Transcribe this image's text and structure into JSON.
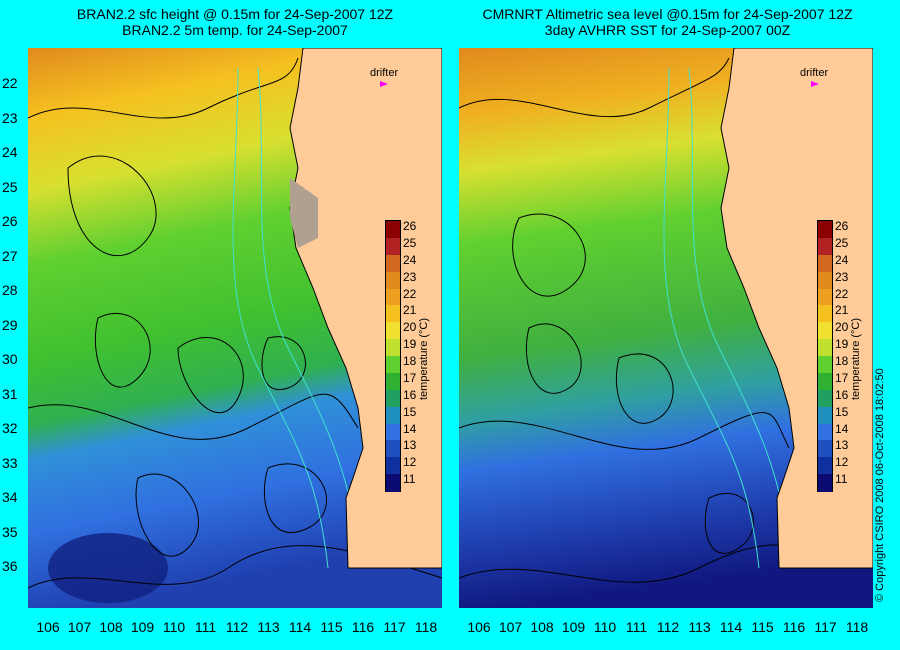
{
  "panels": [
    {
      "title_line1": "BRAN2.2 sfc height @ 0.15m for 24-Sep-2007 12Z",
      "title_line2": "BRAN2.2 5m temp. for 24-Sep-2007",
      "drifter_label": "drifter",
      "colorbar_title": "temperature (°C)"
    },
    {
      "title_line1": "CMRNRT Altimetric sea level  @0.15m  for 24-Sep-2007 12Z",
      "title_line2": "3day AVHRR SST for 24-Sep-2007 00Z",
      "drifter_label": "drifter",
      "colorbar_title": "temperature (°C)"
    }
  ],
  "lat_ticks": [
    "22",
    "23",
    "24",
    "25",
    "26",
    "27",
    "28",
    "29",
    "30",
    "31",
    "32",
    "33",
    "34",
    "35",
    "36"
  ],
  "lon_ticks": [
    "106",
    "107",
    "108",
    "109",
    "110",
    "111",
    "112",
    "113",
    "114",
    "115",
    "116",
    "117",
    "118"
  ],
  "colorbar": {
    "labels": [
      "26",
      "25",
      "24",
      "23",
      "22",
      "21",
      "20",
      "19",
      "18",
      "17",
      "16",
      "15",
      "14",
      "13",
      "12",
      "11"
    ],
    "colors": [
      "#8b0000",
      "#b22222",
      "#d2691e",
      "#e08a1e",
      "#f0a020",
      "#f5c020",
      "#f0e030",
      "#c0e030",
      "#60d030",
      "#30b030",
      "#20a060",
      "#2090c0",
      "#3070e0",
      "#2050c0",
      "#1030a0",
      "#0a0a70"
    ]
  },
  "copyright": "© Copyright CSIRO 2008   06-Oct-2008 18:02:50",
  "colors": {
    "background": "#00ffff",
    "land": "#ffcc99",
    "drifter": "#ff00ff",
    "contour": "#000000",
    "isobath": "#40e0d0"
  }
}
